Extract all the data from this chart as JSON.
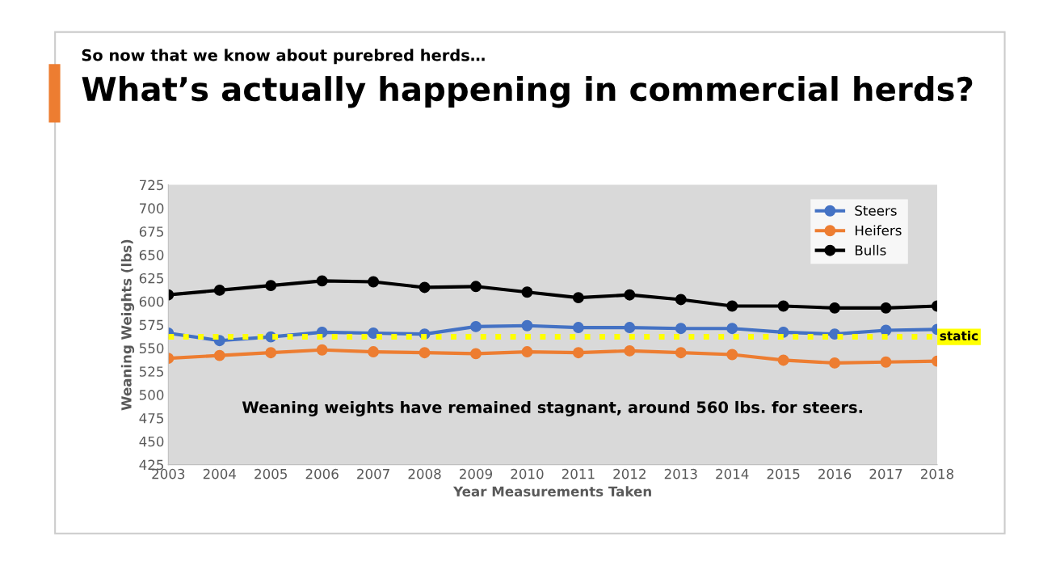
{
  "chart_data": {
    "type": "line",
    "subtitle": "So now that we know about purebred herds…",
    "title": "What’s actually happening in commercial herds?",
    "xlabel": "Year Measurements Taken",
    "ylabel": "Weaning Weights (lbs)",
    "categories": [
      "2003",
      "2004",
      "2005",
      "2006",
      "2007",
      "2008",
      "2009",
      "2010",
      "2011",
      "2012",
      "2013",
      "2014",
      "2015",
      "2016",
      "2017",
      "2018"
    ],
    "series": [
      {
        "name": "Steers",
        "color": "#4472c4",
        "values": [
          566,
          558,
          562,
          567,
          566,
          565,
          573,
          574,
          572,
          572,
          571,
          571,
          567,
          565,
          569,
          570
        ]
      },
      {
        "name": "Heifers",
        "color": "#ed7d31",
        "values": [
          539,
          542,
          545,
          548,
          546,
          545,
          544,
          546,
          545,
          547,
          545,
          543,
          537,
          534,
          535,
          536
        ]
      },
      {
        "name": "Bulls",
        "color": "#000000",
        "values": [
          607,
          612,
          617,
          622,
          621,
          615,
          616,
          610,
          604,
          607,
          602,
          595,
          595,
          593,
          593,
          595
        ]
      }
    ],
    "ylim": [
      425,
      725
    ],
    "yticks": [
      425,
      450,
      475,
      500,
      525,
      550,
      575,
      600,
      625,
      650,
      675,
      700,
      725
    ],
    "ref_lines": [
      {
        "axis": "y",
        "value": 562,
        "label": "static",
        "color": "#ffff00",
        "line_style": "dotted"
      }
    ],
    "annotations": [
      "Weaning weights have remained stagnant, around 560 lbs. for steers."
    ],
    "grid": false,
    "legend": "top right",
    "marker": "circle",
    "line_style": "solid"
  }
}
